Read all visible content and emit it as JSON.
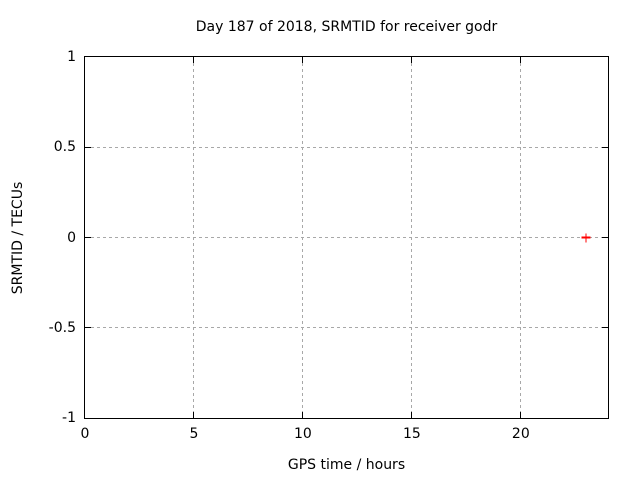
{
  "colors": {
    "background": "#ffffff",
    "border": "#000000",
    "grid": "#a8a8a8",
    "text": "#000000",
    "series_red": "#ff0000"
  },
  "chart_data": {
    "type": "scatter",
    "title": "Day 187 of 2018, SRMTID for receiver godr",
    "xlabel": "GPS time / hours",
    "ylabel": "SRMTID / TECUs",
    "xlim": [
      0,
      24
    ],
    "ylim": [
      -1,
      1
    ],
    "xticks": [
      0,
      5,
      10,
      15,
      20
    ],
    "yticks": [
      -1,
      -0.5,
      0,
      0.5,
      1
    ],
    "grid": true,
    "grid_style": "dashed",
    "legend_position": "none",
    "series": [
      {
        "name": "SRMTID",
        "marker": "plus",
        "color": "#ff0000",
        "points": [
          {
            "x": 23.0,
            "y": 0.0
          }
        ]
      }
    ]
  }
}
